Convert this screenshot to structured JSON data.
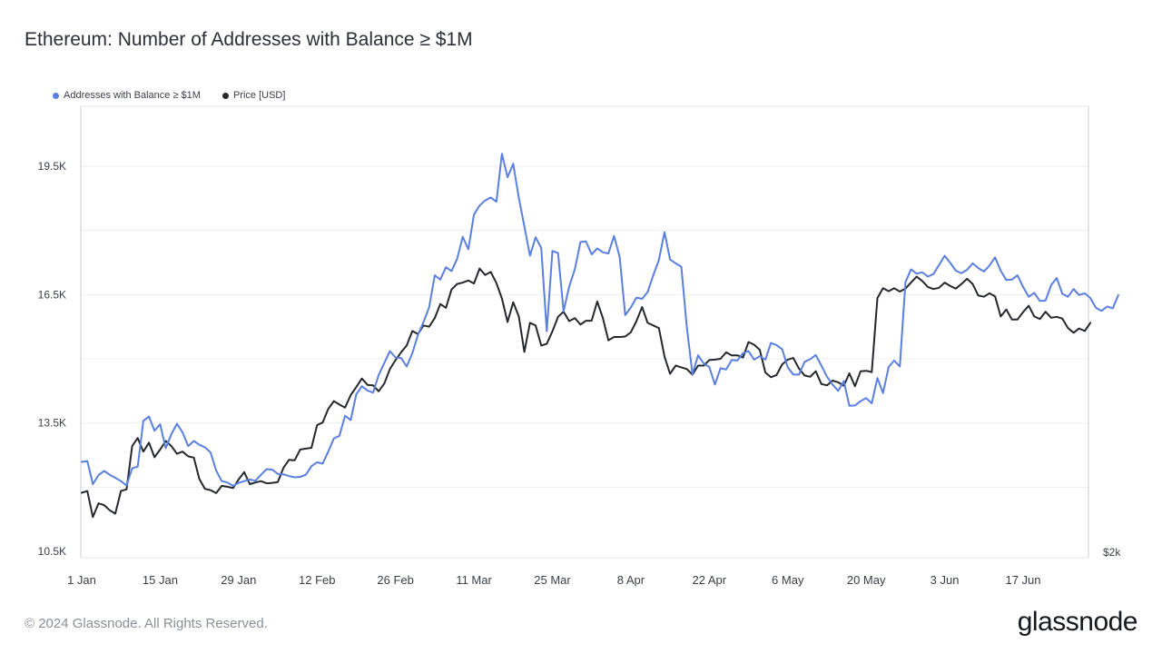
{
  "title": "Ethereum: Number of Addresses with Balance ≥ $1M",
  "legend": [
    {
      "label": "Addresses with Balance ≥ $1M",
      "color": "#5b7fe0"
    },
    {
      "label": "Price [USD]",
      "color": "#24272c"
    }
  ],
  "footer": "© 2024 Glassnode. All Rights Reserved.",
  "brand": "glassnode",
  "chart_data": {
    "type": "line",
    "title": "Ethereum: Number of Addresses with Balance ≥ $1M",
    "x_ticks": [
      "1 Jan",
      "15 Jan",
      "29 Jan",
      "12 Feb",
      "26 Feb",
      "11 Mar",
      "25 Mar",
      "8 Apr",
      "22 Apr",
      "6 May",
      "20 May",
      "3 Jun",
      "17 Jun"
    ],
    "y_left_ticks": [
      "10.5K",
      "13.5K",
      "16.5K",
      "19.5K"
    ],
    "y_left_values": [
      10500,
      13500,
      16500,
      19500
    ],
    "y_left_range": [
      10500,
      19500
    ],
    "y_right_ticks": [
      "$2k"
    ],
    "grid": true,
    "legend_position": "top-left",
    "x_start": "2024-01-01",
    "series": [
      {
        "name": "Addresses with Balance ≥ $1M",
        "color": "#5b7fe0",
        "values": [
          12590,
          12610,
          12070,
          12280,
          12380,
          12290,
          12220,
          12140,
          12040,
          12440,
          12480,
          13550,
          13650,
          13320,
          13470,
          12910,
          13240,
          13480,
          13280,
          12960,
          13080,
          12990,
          12930,
          12810,
          12390,
          12140,
          12110,
          12030,
          12100,
          12140,
          12180,
          12150,
          12290,
          12420,
          12410,
          12310,
          12300,
          12260,
          12230,
          12240,
          12290,
          12490,
          12580,
          12550,
          12830,
          13140,
          13200,
          13670,
          13570,
          14170,
          14360,
          14260,
          14210,
          14620,
          14900,
          15180,
          15030,
          15020,
          14820,
          15130,
          15560,
          15860,
          16200,
          16950,
          16850,
          17140,
          17050,
          17340,
          17850,
          17560,
          18370,
          18580,
          18700,
          18770,
          18670,
          19790,
          19240,
          19560,
          18760,
          18100,
          17410,
          17840,
          17590,
          15640,
          17520,
          17470,
          16110,
          16690,
          17090,
          17730,
          17740,
          17440,
          17580,
          17490,
          17460,
          17870,
          17380,
          16020,
          16200,
          16430,
          16400,
          16560,
          16950,
          17310,
          17960,
          17320,
          17230,
          17150,
          15730,
          14640,
          15080,
          14890,
          14810,
          14400,
          14780,
          14750,
          14970,
          14960,
          15130,
          15180,
          14980,
          15060,
          14980,
          15370,
          15320,
          15220,
          14800,
          14630,
          14630,
          14930,
          14990,
          15090,
          14840,
          14580,
          14400,
          14250,
          14480,
          13900,
          13910,
          14010,
          14080,
          13960,
          14550,
          14200,
          14810,
          14960,
          14820,
          16790,
          17090,
          16990,
          17020,
          16920,
          16980,
          17190,
          17410,
          17240,
          17060,
          17000,
          17080,
          17230,
          17120,
          17040,
          17180,
          17370,
          17060,
          16840,
          16850,
          16950,
          16680,
          16450,
          16540,
          16350,
          16360,
          16720,
          16890,
          16520,
          16450,
          16630,
          16490,
          16530,
          16420,
          16190,
          16120,
          16220,
          16180,
          16490
        ]
      },
      {
        "name": "Price [USD]",
        "color": "#24272c",
        "values": [
          11870,
          11910,
          11300,
          11620,
          11580,
          11460,
          11380,
          11910,
          11950,
          12960,
          13150,
          12830,
          13040,
          12700,
          12880,
          13080,
          12960,
          12780,
          12830,
          12720,
          12690,
          12190,
          11960,
          11930,
          11860,
          12030,
          12010,
          11980,
          12180,
          12350,
          12070,
          12110,
          12140,
          12090,
          12100,
          12120,
          12450,
          12640,
          12630,
          12880,
          12900,
          12920,
          13450,
          13510,
          13830,
          14010,
          13930,
          13860,
          14150,
          14340,
          14540,
          14390,
          14380,
          14240,
          14420,
          14760,
          14970,
          15150,
          15310,
          15650,
          15580,
          15780,
          15750,
          15950,
          16280,
          16190,
          16620,
          16750,
          16780,
          16830,
          16760,
          17110,
          16960,
          17030,
          16770,
          16410,
          15860,
          16320,
          15990,
          15160,
          15840,
          15780,
          15310,
          15350,
          15640,
          15980,
          16100,
          15880,
          15950,
          15800,
          15890,
          15890,
          16340,
          15950,
          15430,
          15510,
          15510,
          15520,
          15620,
          15880,
          16210,
          15840,
          15780,
          15720,
          15050,
          14650,
          14840,
          14800,
          14760,
          14630,
          14840,
          14840,
          14970,
          14980,
          15000,
          15150,
          15080,
          15080,
          15030,
          15390,
          15330,
          15210,
          14680,
          14570,
          14620,
          14870,
          14980,
          15020,
          14770,
          14610,
          14580,
          14710,
          14410,
          14380,
          14490,
          14450,
          14370,
          14660,
          14360,
          14710,
          14720,
          14690,
          16420,
          16650,
          16580,
          16650,
          16570,
          16640,
          16780,
          16920,
          16820,
          16680,
          16630,
          16660,
          16780,
          16700,
          16640,
          16750,
          16870,
          16750,
          16480,
          16450,
          16530,
          16460,
          15990,
          16150,
          15920,
          15920,
          16090,
          16240,
          15990,
          15930,
          16100,
          15960,
          15980,
          15940,
          15720,
          15610,
          15710,
          15650,
          15840
        ]
      }
    ]
  }
}
